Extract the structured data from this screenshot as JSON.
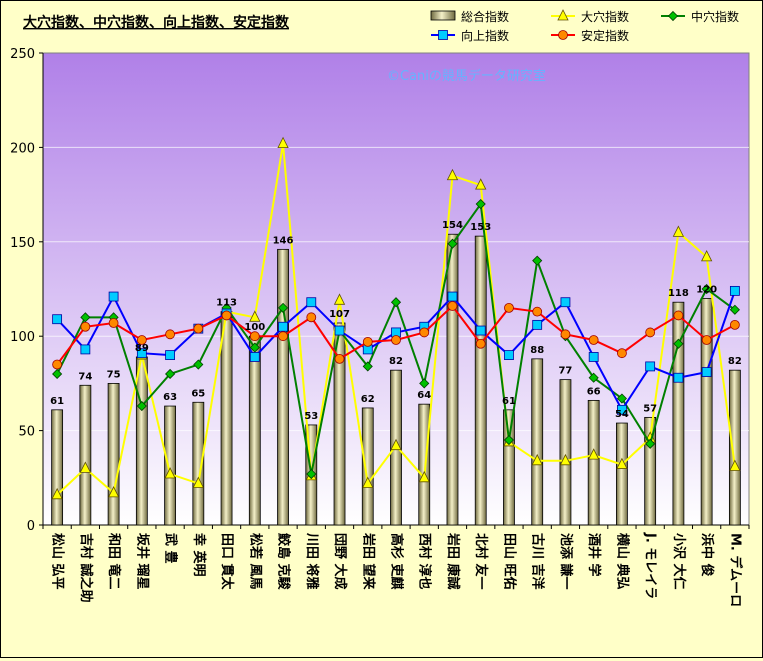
{
  "chart_data": {
    "type": "bar+line",
    "title": "大穴指数、中穴指数、向上指数、安定指数",
    "watermark": "©Caniの競馬データ研究室",
    "ylim": [
      0,
      250
    ],
    "yticks": [
      0,
      50,
      100,
      150,
      200,
      250
    ],
    "categories": [
      "松山 弘平",
      "吉村 誠之助",
      "和田 竜二",
      "坂井 瑠星",
      "武 豊",
      "幸 英明",
      "田口 貫太",
      "松若 風馬",
      "鮫島 克駿",
      "川田 将雅",
      "団野 大成",
      "岩田 望来",
      "高杉 吏麒",
      "西村 淳也",
      "岩田 康誠",
      "北村 友一",
      "田山 旺佑",
      "古川 吉洋",
      "池添 謙一",
      "酒井 学",
      "横山 典弘",
      "J. モレイラ",
      "小沢 大仁",
      "浜中 俊",
      "M. デムーロ"
    ],
    "series": [
      {
        "name": "総合指数",
        "kind": "bar",
        "color": "#e8e4a8",
        "values": [
          61,
          74,
          75,
          89,
          63,
          65,
          113,
          100,
          146,
          53,
          107,
          62,
          82,
          64,
          154,
          153,
          61,
          88,
          77,
          66,
          54,
          57,
          118,
          120,
          82
        ]
      },
      {
        "name": "大穴指数",
        "kind": "line",
        "marker": "triangle",
        "color": "#ffff00",
        "values": [
          16,
          30,
          17,
          90,
          27,
          22,
          113,
          110,
          202,
          26,
          119,
          22,
          42,
          25,
          185,
          180,
          44,
          34,
          34,
          37,
          32,
          46,
          155,
          142,
          31
        ]
      },
      {
        "name": "中穴指数",
        "kind": "line",
        "marker": "diamond",
        "color": "#008000",
        "markerColor": "#00c000",
        "values": [
          80,
          110,
          110,
          63,
          80,
          85,
          115,
          94,
          115,
          27,
          103,
          84,
          118,
          75,
          149,
          170,
          45,
          140,
          100,
          78,
          67,
          43,
          96,
          125,
          114
        ]
      },
      {
        "name": "向上指数",
        "kind": "line",
        "marker": "square",
        "color": "#0000ff",
        "markerColor": "#00ccff",
        "values": [
          109,
          93,
          121,
          91,
          90,
          104,
          112,
          89,
          105,
          118,
          103,
          93,
          102,
          105,
          121,
          103,
          90,
          106,
          118,
          89,
          61,
          84,
          78,
          81,
          124
        ]
      },
      {
        "name": "安定指数",
        "kind": "line",
        "marker": "circle",
        "color": "#ff0000",
        "markerColor": "#ff8800",
        "values": [
          85,
          105,
          107,
          98,
          101,
          104,
          111,
          100,
          100,
          110,
          88,
          97,
          98,
          102,
          116,
          96,
          115,
          113,
          101,
          98,
          91,
          102,
          111,
          98,
          106
        ]
      }
    ]
  }
}
